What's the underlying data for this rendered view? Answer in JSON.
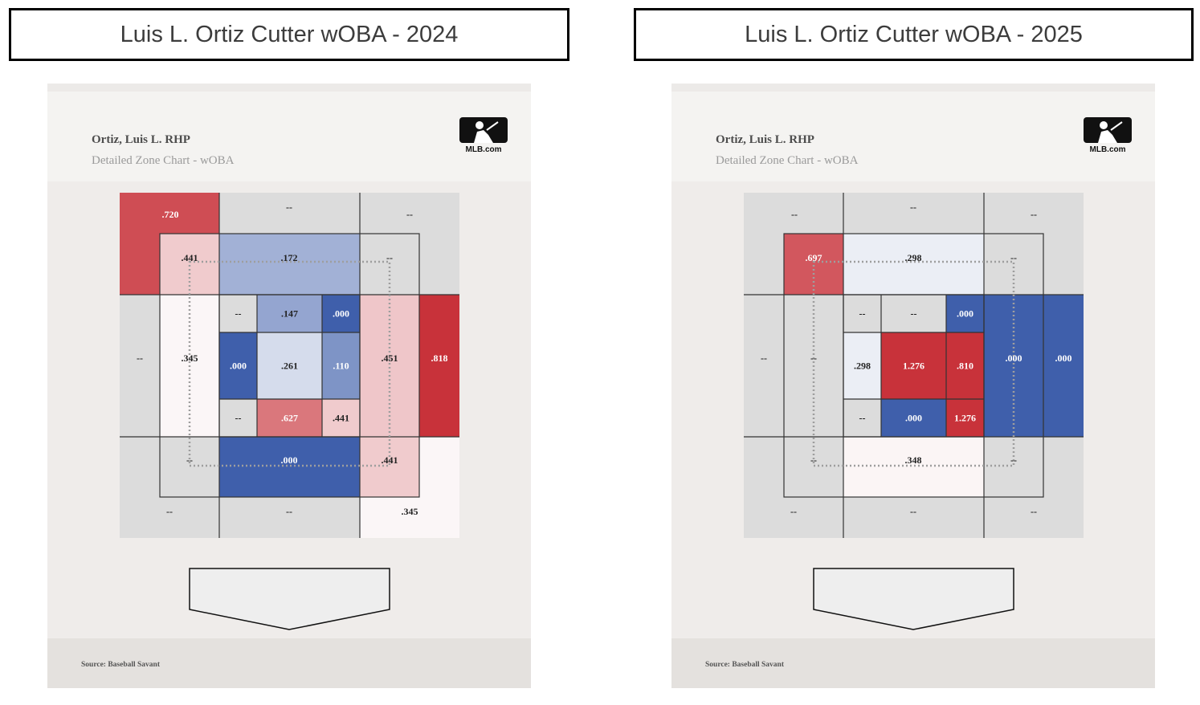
{
  "titles": {
    "left": "Luis L. Ortiz Cutter wOBA - 2024",
    "right": "Luis L. Ortiz Cutter wOBA - 2025"
  },
  "panels": [
    {
      "player": "Ortiz, Luis L. RHP",
      "subtitle": "Detailed Zone Chart - wOBA",
      "logo_text": "MLB.com",
      "source": "Source: Baseball Savant"
    },
    {
      "player": "Ortiz, Luis L. RHP",
      "subtitle": "Detailed Zone Chart - wOBA",
      "logo_text": "MLB.com",
      "source": "Source: Baseball Savant"
    }
  ],
  "chart_data": [
    {
      "type": "heatmap",
      "title": "Luis L. Ortiz Cutter wOBA - 2024",
      "metric": "wOBA",
      "colors": {
        "high": "#c8323a",
        "low": "#3f5fab",
        "neutral": "#fdfdfd",
        "empty": "#dcdcdc"
      },
      "outer_zones": {
        "top_left": ".720",
        "top": "--",
        "top_right": "--",
        "left": "--",
        "right": ".818",
        "bottom_left": "--",
        "bottom": "--",
        "bottom_right": ".345"
      },
      "shadow_zones": {
        "top_left": ".441",
        "top": ".172",
        "top_right": "--",
        "left": ".345",
        "right": ".451",
        "bottom_left": "--",
        "bottom": ".000",
        "bottom_right": ".441"
      },
      "strike_zone": [
        [
          "--",
          ".147",
          ".000"
        ],
        [
          ".000",
          ".261",
          ".110"
        ],
        [
          "--",
          ".627",
          ".441"
        ]
      ]
    },
    {
      "type": "heatmap",
      "title": "Luis L. Ortiz Cutter wOBA - 2025",
      "metric": "wOBA",
      "colors": {
        "high": "#c8323a",
        "low": "#3f5fab",
        "neutral": "#fdfdfd",
        "empty": "#dcdcdc"
      },
      "outer_zones": {
        "top_left": "--",
        "top": "--",
        "top_right": "--",
        "left": "--",
        "right": ".000",
        "bottom_left": "--",
        "bottom": "--",
        "bottom_right": "--"
      },
      "shadow_zones": {
        "top_left": ".697",
        "top": ".298",
        "top_right": "--",
        "left": "--",
        "right": ".000",
        "bottom_left": "--",
        "bottom": ".348",
        "bottom_right": "--"
      },
      "strike_zone": [
        [
          "--",
          "--",
          ".000"
        ],
        [
          ".298",
          "1.276",
          ".810"
        ],
        [
          "--",
          ".000",
          "1.276"
        ]
      ]
    }
  ]
}
